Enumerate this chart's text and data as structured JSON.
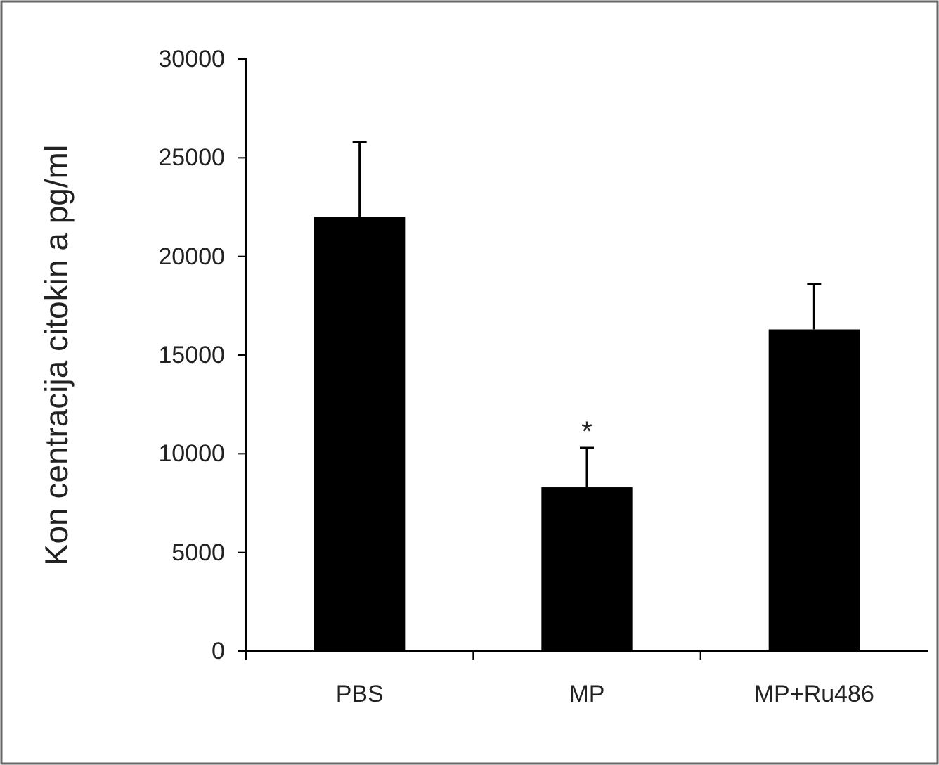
{
  "chart_data": {
    "type": "bar",
    "ylabel": "Kon centracija citokin a pg/ml",
    "categories": [
      "PBS",
      "MP",
      "MP+Ru486"
    ],
    "values": [
      22000,
      8300,
      16300
    ],
    "color": "#000000",
    "errors": [
      [
        22000,
        25800
      ],
      [
        8300,
        10300
      ],
      [
        16300,
        18600
      ]
    ],
    "ylim": [
      0,
      30000
    ],
    "yticks": [
      0,
      5000,
      10000,
      15000,
      20000,
      25000,
      30000
    ],
    "grid": false,
    "annotations": [
      {
        "text": "*",
        "x": "MP",
        "y": 10300
      }
    ]
  }
}
